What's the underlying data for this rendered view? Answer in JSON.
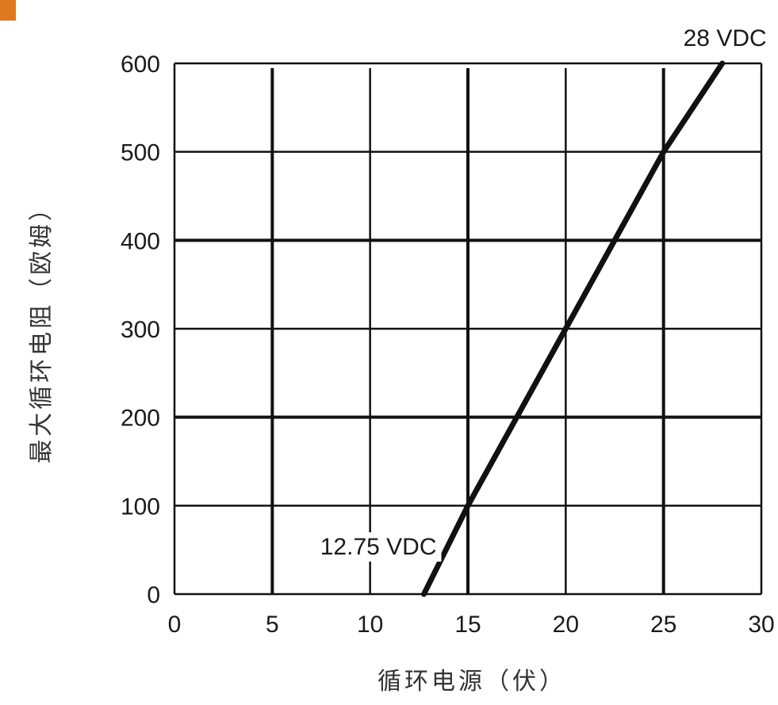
{
  "colors": {
    "line": "#111111",
    "grid": "#111111",
    "text": "#1a1a1a",
    "corner_mark": "#e07820"
  },
  "chart_data": {
    "type": "line",
    "x_label": "循环电源（伏）",
    "y_label": "最大循环电阻（欧姆）",
    "xlim": [
      0,
      30
    ],
    "ylim": [
      0,
      600
    ],
    "x_ticks": [
      "0",
      "5",
      "10",
      "15",
      "20",
      "25",
      "30"
    ],
    "y_ticks": [
      "0",
      "100",
      "200",
      "300",
      "400",
      "500",
      "600"
    ],
    "grid": true,
    "series": [
      {
        "points": [
          [
            12.75,
            0
          ],
          [
            15,
            100
          ],
          [
            20,
            300
          ],
          [
            25,
            500
          ],
          [
            28,
            600
          ]
        ]
      }
    ],
    "annotations": [
      {
        "id": "start",
        "text": "12.75 VDC",
        "x": 12.75,
        "y": 0
      },
      {
        "id": "end",
        "text": "28 VDC",
        "x": 28,
        "y": 600
      }
    ]
  }
}
